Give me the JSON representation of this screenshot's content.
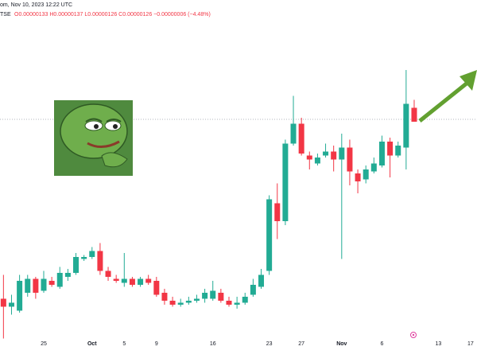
{
  "header": {
    "line1": "om, Nov 10, 2023 12:22 UTC",
    "symbol": "TSE",
    "ohlc": "O0.00000133 H0.00000137 L0.00000126 C0.00000126 −0.00000006 (−4.48%)"
  },
  "chart_data": {
    "type": "candlestick",
    "categories": [
      null,
      null,
      null,
      null,
      null,
      "25",
      null,
      null,
      null,
      null,
      null,
      "Oct",
      null,
      null,
      null,
      "5",
      null,
      null,
      null,
      "9",
      null,
      null,
      null,
      null,
      null,
      null,
      "16",
      null,
      null,
      null,
      null,
      null,
      null,
      "23",
      null,
      null,
      null,
      "27",
      null,
      null,
      null,
      null,
      "Nov",
      null,
      null,
      null,
      null,
      "6",
      null,
      null,
      null,
      null,
      null,
      null,
      "13",
      null,
      null,
      null,
      "17"
    ],
    "open": [
      3.7e-07,
      3.3e-07,
      3.1e-07,
      4e-07,
      4.7e-07,
      4.1e-07,
      4.6e-07,
      4.3e-07,
      4.8e-07,
      5e-07,
      5.7e-07,
      5.8e-07,
      6.1e-07,
      5.1e-07,
      4.7e-07,
      4.5e-07,
      4.7e-07,
      4.4e-07,
      4.7e-07,
      4.6e-07,
      4e-07,
      3.6e-07,
      3.4e-07,
      3.5e-07,
      3.6e-07,
      3.7e-07,
      3.7e-07,
      4e-07,
      3.6e-07,
      3.4e-07,
      3.5e-07,
      3.9e-07,
      4.3e-07,
      5.1e-07,
      8.5e-07,
      7.6e-07,
      1.15e-06,
      1.25e-06,
      1.09e-06,
      1.05e-06,
      1.09e-06,
      1.11e-06,
      1.07e-06,
      1.13e-06,
      1e-06,
      9.7e-07,
      1.01e-06,
      1.04e-06,
      1.16e-06,
      1.09e-06,
      1.13e-06,
      1.33e-06,
      null,
      null,
      null,
      null,
      null,
      null,
      null
    ],
    "high": [
      4.9e-07,
      3.9e-07,
      4.9e-07,
      4.9e-07,
      4.8e-07,
      5.1e-07,
      4.8e-07,
      5.3e-07,
      5.2e-07,
      6e-07,
      5.9e-07,
      6.3e-07,
      6.5e-07,
      5.3e-07,
      4.9e-07,
      6e-07,
      4.8e-07,
      4.8e-07,
      4.9e-07,
      4.8e-07,
      4.2e-07,
      3.8e-07,
      3.7e-07,
      3.8e-07,
      3.9e-07,
      4.2e-07,
      4.6e-07,
      4.2e-07,
      3.8e-07,
      3.8e-07,
      4e-07,
      4.7e-07,
      5.2e-07,
      8.9e-07,
      9.5e-07,
      1.17e-06,
      1.39e-06,
      1.28e-06,
      1.11e-06,
      1.1e-06,
      1.15e-06,
      1.14e-06,
      1.2e-06,
      1.17e-06,
      1.02e-06,
      1.04e-06,
      1.08e-06,
      1.19e-06,
      1.18e-06,
      1.16e-06,
      1.52e-06,
      1.37e-06,
      null,
      null,
      null,
      null,
      null,
      null,
      null
    ],
    "low": [
      1.7e-07,
      2.9e-07,
      3e-07,
      3.8e-07,
      3.7e-07,
      4e-07,
      4.3e-07,
      4.2e-07,
      4.6e-07,
      4.9e-07,
      5.6e-07,
      5.7e-07,
      4.9e-07,
      4.6e-07,
      4.5e-07,
      4.3e-07,
      4.3e-07,
      4.3e-07,
      4.4e-07,
      3.8e-07,
      3.4e-07,
      3.3e-07,
      3.3e-07,
      3.4e-07,
      3.5e-07,
      3.5e-07,
      3.6e-07,
      3.5e-07,
      3.3e-07,
      3.2e-07,
      3.4e-07,
      3.8e-07,
      4.2e-07,
      4.9e-07,
      6.7e-07,
      7.4e-07,
      1.14e-06,
      1.09e-06,
      1.02e-06,
      1.04e-06,
      1.08e-06,
      1.01e-06,
      5.7e-07,
      9.4e-07,
      9e-07,
      9.5e-07,
      1e-06,
      1.03e-06,
      9.8e-07,
      1.08e-06,
      1.02e-06,
      1.26e-06,
      null,
      null,
      null,
      null,
      null,
      null,
      null
    ],
    "close": [
      3.3e-07,
      3.5e-07,
      4.6e-07,
      4.7e-07,
      4e-07,
      4.7e-07,
      4.4e-07,
      5e-07,
      5e-07,
      5.8e-07,
      5.8e-07,
      6.1e-07,
      5.1e-07,
      4.8e-07,
      4.6e-07,
      4.7e-07,
      4.4e-07,
      4.7e-07,
      4.5e-07,
      3.9e-07,
      3.6e-07,
      3.4e-07,
      3.5e-07,
      3.6e-07,
      3.7e-07,
      4e-07,
      4.1e-07,
      3.6e-07,
      3.4e-07,
      3.5e-07,
      3.8e-07,
      4.4e-07,
      4.9e-07,
      8.7e-07,
      7.6e-07,
      1.15e-06,
      1.25e-06,
      1.1e-06,
      1.07e-06,
      1.08e-06,
      1.11e-06,
      1.07e-06,
      1.13e-06,
      1.01e-06,
      9.6e-07,
      1.02e-06,
      1.05e-06,
      1.16e-06,
      1.09e-06,
      1.14e-06,
      1.35e-06,
      1.26e-06,
      null,
      null,
      null,
      null,
      null,
      null,
      null
    ],
    "up_color": "#22ab94",
    "down_color": "#f23645",
    "ylim": [
      1.72e-07,
      1.872e-06
    ]
  }
}
